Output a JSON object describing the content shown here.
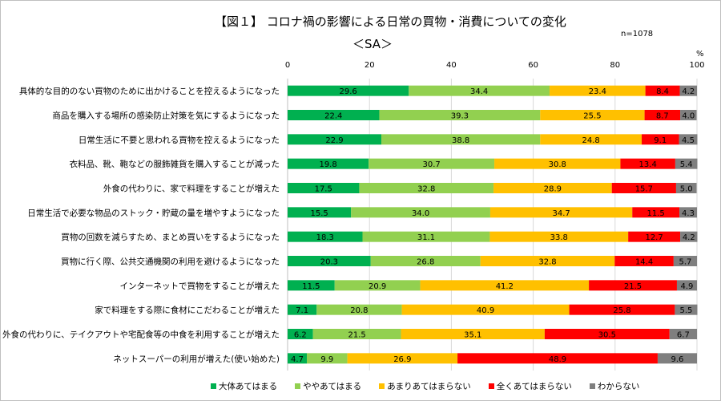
{
  "chart_data": {
    "type": "bar",
    "orientation": "horizontal",
    "stacked": true,
    "title": "【図１】 コロナ禍の影響による日常の買物・消費についての変化",
    "subtitle": "＜SA＞",
    "sample_size": "n=1078",
    "unit_label": "%",
    "xlim": [
      0,
      100
    ],
    "x_ticks": [
      "0",
      "20",
      "40",
      "60",
      "80",
      "100"
    ],
    "grid": true,
    "legend_position": "bottom",
    "categories": [
      "具体的な目的のない買物のために出かけることを控えるようになった",
      "商品を購入する場所の感染防止対策を気にするようになった",
      "日常生活に不要と思われる買物を控えるようになった",
      "衣料品、靴、鞄などの服飾雑貨を購入することが減った",
      "外食の代わりに、家で料理をすることが増えた",
      "日常生活で必要な物品のストック・貯蔵の量を増やすようになった",
      "買物の回数を減らすため、まとめ買いをするようになった",
      "買物に行く際、公共交通機関の利用を避けるようになった",
      "インターネットで買物をすることが増えた",
      "家で料理をする際に食材にこだわることが増えた",
      "外食の代わりに、テイクアウトや宅配食等の中食を利用することが増えた",
      "ネットスーパーの利用が増えた(使い始めた)"
    ],
    "series": [
      {
        "name": "大体あてはまる",
        "color": "#00b050",
        "values": [
          29.6,
          22.4,
          22.9,
          19.8,
          17.5,
          15.5,
          18.3,
          20.3,
          11.5,
          7.1,
          6.2,
          4.7
        ]
      },
      {
        "name": "ややあてはまる",
        "color": "#92d050",
        "values": [
          34.4,
          39.3,
          38.8,
          30.7,
          32.8,
          34.0,
          31.1,
          26.8,
          20.9,
          20.8,
          21.5,
          9.9
        ]
      },
      {
        "name": "あまりあてはまらない",
        "color": "#ffc000",
        "values": [
          23.4,
          25.5,
          24.8,
          30.8,
          28.9,
          34.7,
          33.8,
          32.8,
          41.2,
          40.9,
          35.1,
          26.9
        ]
      },
      {
        "name": "全くあてはまらない",
        "color": "#ff0000",
        "values": [
          8.4,
          8.7,
          9.1,
          13.4,
          15.7,
          11.5,
          12.7,
          14.4,
          21.5,
          25.8,
          30.5,
          48.9
        ]
      },
      {
        "name": "わからない",
        "color": "#7f7f7f",
        "values": [
          4.2,
          4.0,
          4.5,
          5.4,
          5.0,
          4.3,
          4.2,
          5.7,
          4.9,
          5.5,
          6.7,
          9.6
        ]
      }
    ]
  }
}
